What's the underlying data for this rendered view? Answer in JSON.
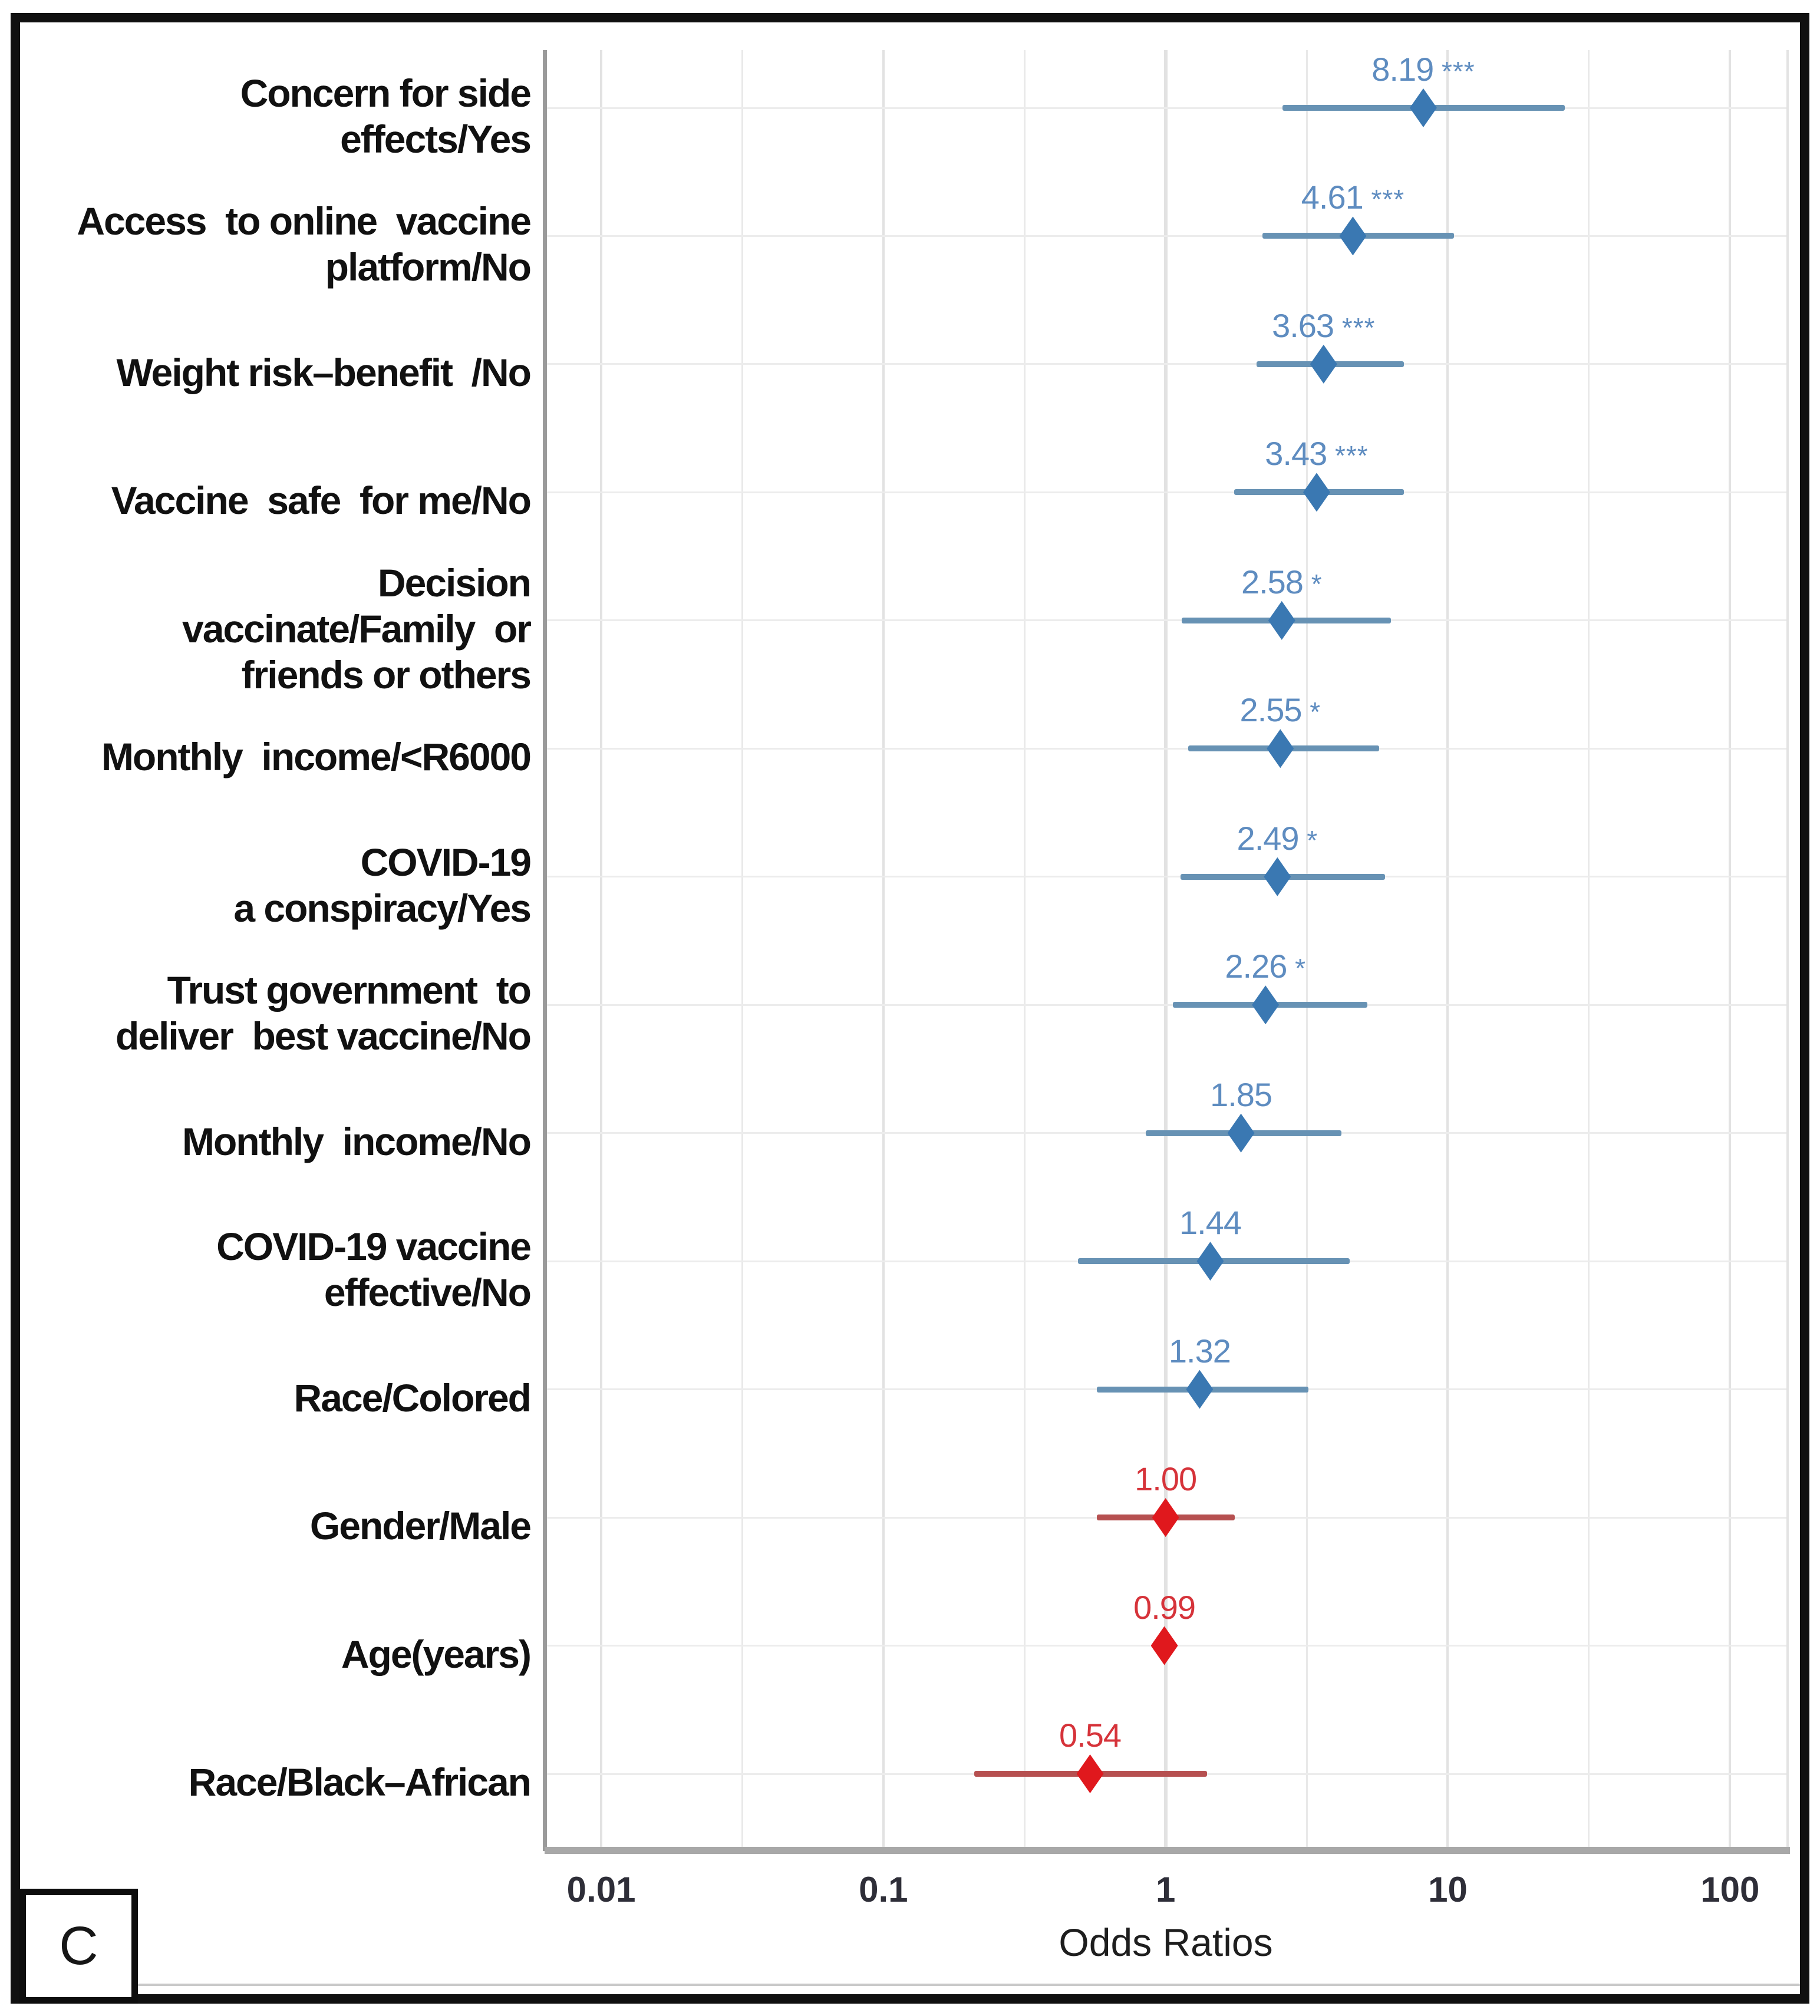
{
  "figure": {
    "panel_label": "C"
  },
  "chart_data": {
    "type": "scatter",
    "subtype": "forest-plot-odds-ratios",
    "title": "",
    "xlabel": "Odds Ratios",
    "ylabel": "",
    "x_scale": "log10",
    "grid": true,
    "legend": false,
    "x_ticks": [
      0.01,
      0.1,
      1,
      10,
      100
    ],
    "x_tick_labels": [
      "0.01",
      "0.1",
      "1",
      "10",
      "100"
    ],
    "xlim": [
      0.0063,
      160
    ],
    "rows": [
      {
        "label_lines": [
          "Concern for side",
          "effects/Yes"
        ],
        "or": "8.19",
        "stars": "***",
        "ci_low": 2.6,
        "ci_high": 26.0,
        "group": "positive"
      },
      {
        "label_lines": [
          "Access  to online  vaccine",
          "platform/No"
        ],
        "or": "4.61",
        "stars": "***",
        "ci_low": 2.2,
        "ci_high": 10.5,
        "group": "positive"
      },
      {
        "label_lines": [
          "Weight risk–benefit  /No"
        ],
        "or": "3.63",
        "stars": "***",
        "ci_low": 2.1,
        "ci_high": 7.0,
        "group": "positive"
      },
      {
        "label_lines": [
          "Vaccine  safe  for me/No"
        ],
        "or": "3.43",
        "stars": "***",
        "ci_low": 1.75,
        "ci_high": 7.0,
        "group": "positive"
      },
      {
        "label_lines": [
          "Decision",
          "vaccinate/Family  or",
          "friends or others"
        ],
        "or": "2.58",
        "stars": "*",
        "ci_low": 1.14,
        "ci_high": 6.3,
        "group": "positive"
      },
      {
        "label_lines": [
          "Monthly  income/<R6000"
        ],
        "or": "2.55",
        "stars": "*",
        "ci_low": 1.2,
        "ci_high": 5.7,
        "group": "positive"
      },
      {
        "label_lines": [
          "COVID-19",
          "a conspiracy/Yes"
        ],
        "or": "2.49",
        "stars": "*",
        "ci_low": 1.13,
        "ci_high": 6.0,
        "group": "positive"
      },
      {
        "label_lines": [
          "Trust government  to",
          "deliver  best vaccine/No"
        ],
        "or": "2.26",
        "stars": "*",
        "ci_low": 1.06,
        "ci_high": 5.2,
        "group": "positive"
      },
      {
        "label_lines": [
          "Monthly  income/No"
        ],
        "or": "1.85",
        "stars": "",
        "ci_low": 0.85,
        "ci_high": 4.2,
        "group": "positive"
      },
      {
        "label_lines": [
          "COVID-19 vaccine",
          "effective/No"
        ],
        "or": "1.44",
        "stars": "",
        "ci_low": 0.49,
        "ci_high": 4.5,
        "group": "positive"
      },
      {
        "label_lines": [
          "Race/Colored"
        ],
        "or": "1.32",
        "stars": "",
        "ci_low": 0.57,
        "ci_high": 3.2,
        "group": "positive"
      },
      {
        "label_lines": [
          "Gender/Male"
        ],
        "or": "1.00",
        "stars": "",
        "ci_low": 0.57,
        "ci_high": 1.76,
        "group": "negative"
      },
      {
        "label_lines": [
          "Age(years)"
        ],
        "or": "0.99",
        "stars": "",
        "ci_low": 0.95,
        "ci_high": 1.04,
        "group": "negative"
      },
      {
        "label_lines": [
          "Race/Black–African"
        ],
        "or": "0.54",
        "stars": "",
        "ci_low": 0.21,
        "ci_high": 1.4,
        "group": "negative"
      }
    ],
    "colors": {
      "positive_marker": "#3a78b2",
      "positive_line": "#6792b4",
      "positive_text": "#5e8cc0",
      "negative_marker": "#e0181d",
      "negative_line": "#b65050",
      "negative_text": "#d6333a",
      "gridline": "#ececec",
      "axis_line": "#a8a8a8"
    }
  }
}
